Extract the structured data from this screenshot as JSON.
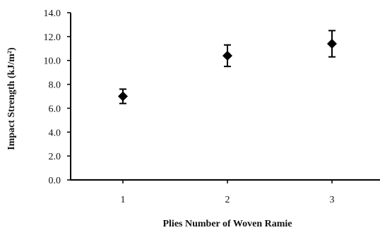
{
  "chart_data": {
    "type": "scatter",
    "title": "",
    "xlabel": "Plies Number of Woven Ramie",
    "ylabel": "Impact Strength (kJ/m²)",
    "x_ticks": [
      "1",
      "2",
      "3"
    ],
    "y_ticks": [
      "0.0",
      "2.0",
      "4.0",
      "6.0",
      "8.0",
      "10.0",
      "12.0",
      "14.0"
    ],
    "xlim": [
      0.5,
      3.5
    ],
    "ylim": [
      0,
      14
    ],
    "grid": false,
    "legend": "none",
    "marker": "diamond",
    "marker_color": "#000000",
    "series": [
      {
        "x": [
          1,
          2,
          3
        ],
        "y": [
          7.0,
          10.4,
          11.4
        ],
        "error": [
          0.6,
          0.9,
          1.1
        ]
      }
    ]
  }
}
